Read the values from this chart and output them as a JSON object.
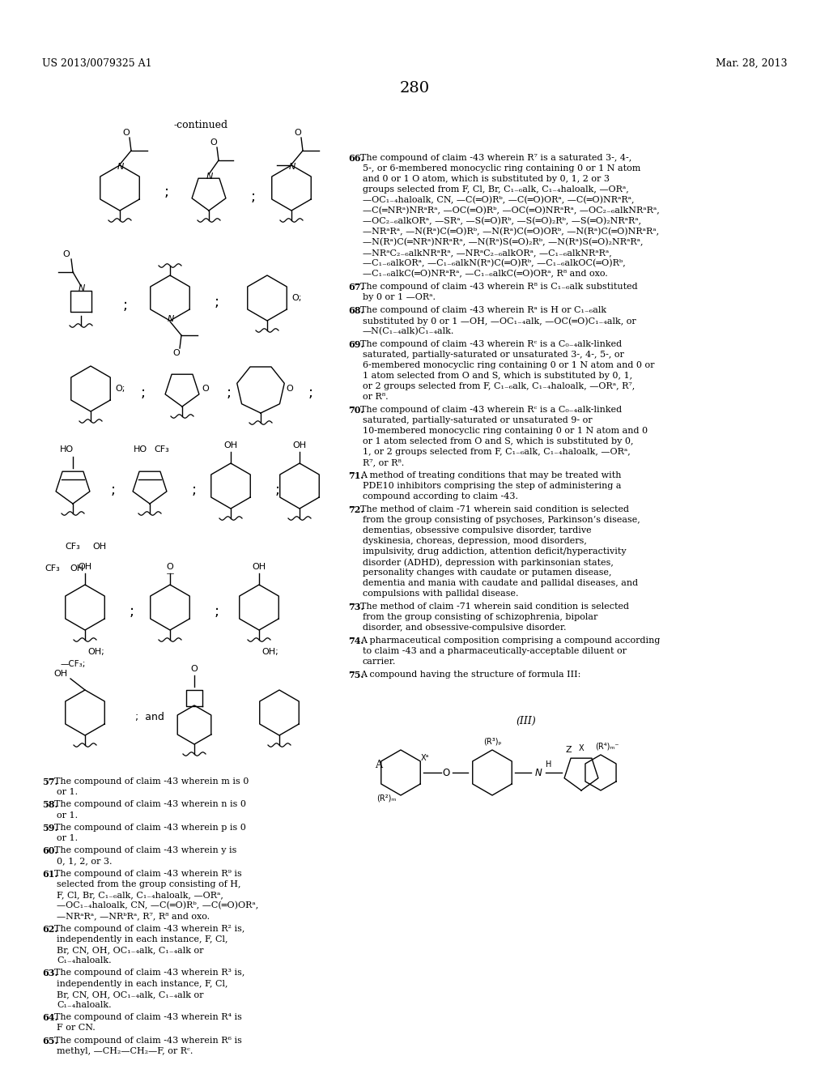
{
  "page_number": "280",
  "patent_number": "US 2013/0079325 A1",
  "date": "Mar. 28, 2013",
  "background_color": "#ffffff",
  "left_col_claims": [
    {
      "num": "57",
      "text": "The compound of claim ­43 wherein m is 0 or 1."
    },
    {
      "num": "58",
      "text": "The compound of claim ­43 wherein n is 0 or 1."
    },
    {
      "num": "59",
      "text": "The compound of claim ­43 wherein p is 0 or 1."
    },
    {
      "num": "60",
      "text": "The compound of claim ­43 wherein y is 0, 1, 2, or 3."
    },
    {
      "num": "61",
      "text": "The compound of claim ­43 wherein R⁹ is selected from the group consisting of H, F, Cl, Br, C₁₋₆alk, C₁₋₄haloalk, —ORᵃ, —OC₁₋₄haloalk, CN, —C(═O)Rᵇ, —C(═O)ORᵃ, —NRᵃRᵃ, —NRᵇRᵃ, R⁷, R⁸ and oxo."
    },
    {
      "num": "62",
      "text": "The compound of claim ­43 wherein R² is, independently in each instance, F, Cl, Br, CN, OH, OC₁₋₄alk, C₁₋₄alk or C₁₋₄haloalk."
    },
    {
      "num": "63",
      "text": "The compound of claim ­43 wherein R³ is, independently in each instance, F, Cl, Br, CN, OH, OC₁₋₄alk, C₁₋₄alk or C₁₋₄haloalk."
    },
    {
      "num": "64",
      "text": "The compound of claim ­43 wherein R⁴ is F or CN."
    },
    {
      "num": "65",
      "text": "The compound of claim ­43 wherein R⁶ is methyl, —CH₂—CH₂—F, or Rᶜ."
    }
  ],
  "right_col_claims": [
    {
      "num": "66",
      "text": "The compound of claim ­43 wherein R⁷ is a saturated 3-, 4-, 5-, or 6-membered monocyclic ring containing 0 or 1 N atom and 0 or 1 O atom, which is substituted by 0, 1, 2 or 3 groups selected from F, Cl, Br, C₁₋₆alk, C₁₋₄haloalk, —ORᵃ, —OC₁₋₄haloalk,    CN,    —C(═O)Rᵇ,    —C(═O)ORᵃ, —C(═O)NRᵃRᵃ,    —C(═NRᵃ)NRᵃRᵃ,    —OC(═O)Rᵇ, —OC(═O)NRᵃRᵃ,  —OC₂₋₆alkNRᵃRᵃ,  —OC₂₋₆alkORᵃ, —SRᵃ,  —S(═O)Rᵇ,  —S(═O)₂Rᵇ,  —S(═O)₂NRᵃRᵃ, —NRᵃRᵃ,    —N(Rᵃ)C(═O)Rᵇ,    —N(Rᵃ)C(═O)ORᵇ, —N(Rᵃ)C(═O)NRᵃRᵃ, —N(Rᵃ)C(═NRᵃ)NRᵃRᵃ, —N(Rᵃ)S(═O)₂Rᵇ, —N(Rᵃ)S(═O)₂NRᵃRᵃ, —NRᵃC₂₋₆alkNRᵃRᵃ, —NRᵃC₂₋₆alkORᵃ, —C₁₋₆alkNRᵃRᵃ, —C₁₋₆alkORᵃ, —C₁₋₆alkN(Rᵃ)C(═O)Rᵇ, —C₁₋₆alkOC(═O)Rᵇ, —C₁₋₆alkC(═O)NRᵃRᵃ, —C₁₋₆alkC(═O)ORᵃ, R⁸ and oxo."
    },
    {
      "num": "67",
      "text": "The compound of claim ­43 wherein R⁸ is C₁₋₆alk substituted by 0 or 1 —ORᵃ."
    },
    {
      "num": "68",
      "text": "The compound of claim ­43 wherein Rᵃ is H or C₁₋₆alk substituted by 0 or 1 —OH, —OC₁₋₄alk, —OC(═O)C₁₋₄alk, or —N(C₁₋₄alk)C₁₋₄alk."
    },
    {
      "num": "69",
      "text": "The compound of claim ­43 wherein Rᶜ is a C₀₋₄alk-linked saturated, partially-saturated or unsaturated 3-, 4-, 5-, or 6-membered monocyclic ring containing 0 or 1 N atom and 0 or 1 atom selected from O and S, which is substituted by 0, 1, or 2 groups selected from F, C₁₋₆alk, C₁₋₄haloalk, —ORᵃ, R⁷, or R⁸."
    },
    {
      "num": "70",
      "text": "The compound of claim ­43 wherein Rᶜ is a C₀₋₄alk-linked saturated, partially-saturated or unsaturated 9- or 10-membered monocyclic ring containing 0 or 1 N atom and 0 or 1 atom selected from O and S, which is substituted by 0, 1, or 2 groups selected from F, C₁₋₆alk, C₁₋₄haloalk, —ORᵃ, R⁷, or R⁸."
    },
    {
      "num": "71",
      "text": "A method of treating conditions that may be treated with PDE10 inhibitors comprising the step of administering a compound according to claim ­43."
    },
    {
      "num": "72",
      "text": "The method of claim ­71 wherein said condition is selected from the group consisting of psychoses, Parkinson’s disease, dementias, obsessive compulsive disorder, tardive dyskinesia, choreas, depression, mood disorders, impulsivity, drug addiction, attention deficit/hyperactivity disorder (ADHD), depression with parkinsonian states, personality changes with caudate or putamen disease, dementia and mania with caudate and pallidal diseases, and compulsions with pallidal disease."
    },
    {
      "num": "73",
      "text": "The method of claim ­71 wherein said condition is selected from the group consisting of schizophrenia, bipolar disorder, and obsessive-compulsive disorder."
    },
    {
      "num": "74",
      "text": "A pharmaceutical composition comprising a compound according to claim ­43 and a pharmaceutically-acceptable diluent or carrier."
    },
    {
      "num": "75",
      "text": "A compound having the structure of formula III:"
    }
  ]
}
